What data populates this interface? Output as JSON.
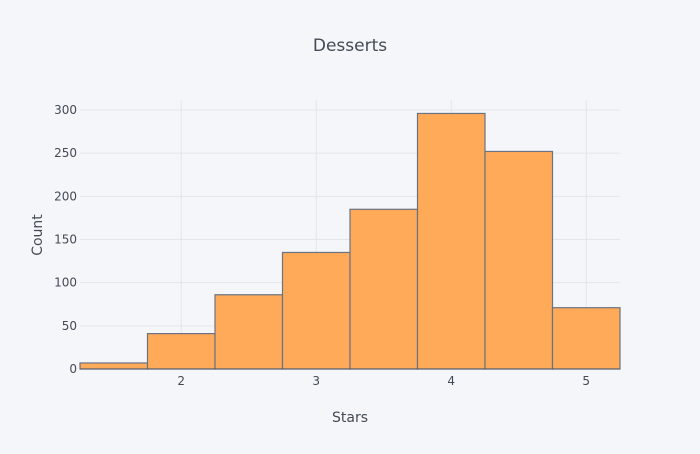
{
  "chart_data": {
    "type": "bar",
    "title": "Desserts",
    "xlabel": "Stars",
    "ylabel": "Count",
    "bins": [
      {
        "x0": 1.25,
        "x1": 1.75,
        "value": 7
      },
      {
        "x0": 1.75,
        "x1": 2.25,
        "value": 41
      },
      {
        "x0": 2.25,
        "x1": 2.75,
        "value": 86
      },
      {
        "x0": 2.75,
        "x1": 3.25,
        "value": 135
      },
      {
        "x0": 3.25,
        "x1": 3.75,
        "value": 185
      },
      {
        "x0": 3.75,
        "x1": 4.25,
        "value": 296
      },
      {
        "x0": 4.25,
        "x1": 4.75,
        "value": 252
      },
      {
        "x0": 4.75,
        "x1": 5.25,
        "value": 71
      }
    ],
    "xlim": [
      1.25,
      5.25
    ],
    "ylim": [
      0,
      300
    ],
    "xticks": [
      2,
      3,
      4,
      5
    ],
    "yticks": [
      0,
      50,
      100,
      150,
      200,
      250,
      300
    ],
    "grid": true,
    "colors": {
      "bar_fill": "#ffa54f",
      "bar_stroke": "#6a7384",
      "background": "#f4f6f9",
      "grid": "#e3e6ea",
      "text": "#444a55"
    }
  }
}
